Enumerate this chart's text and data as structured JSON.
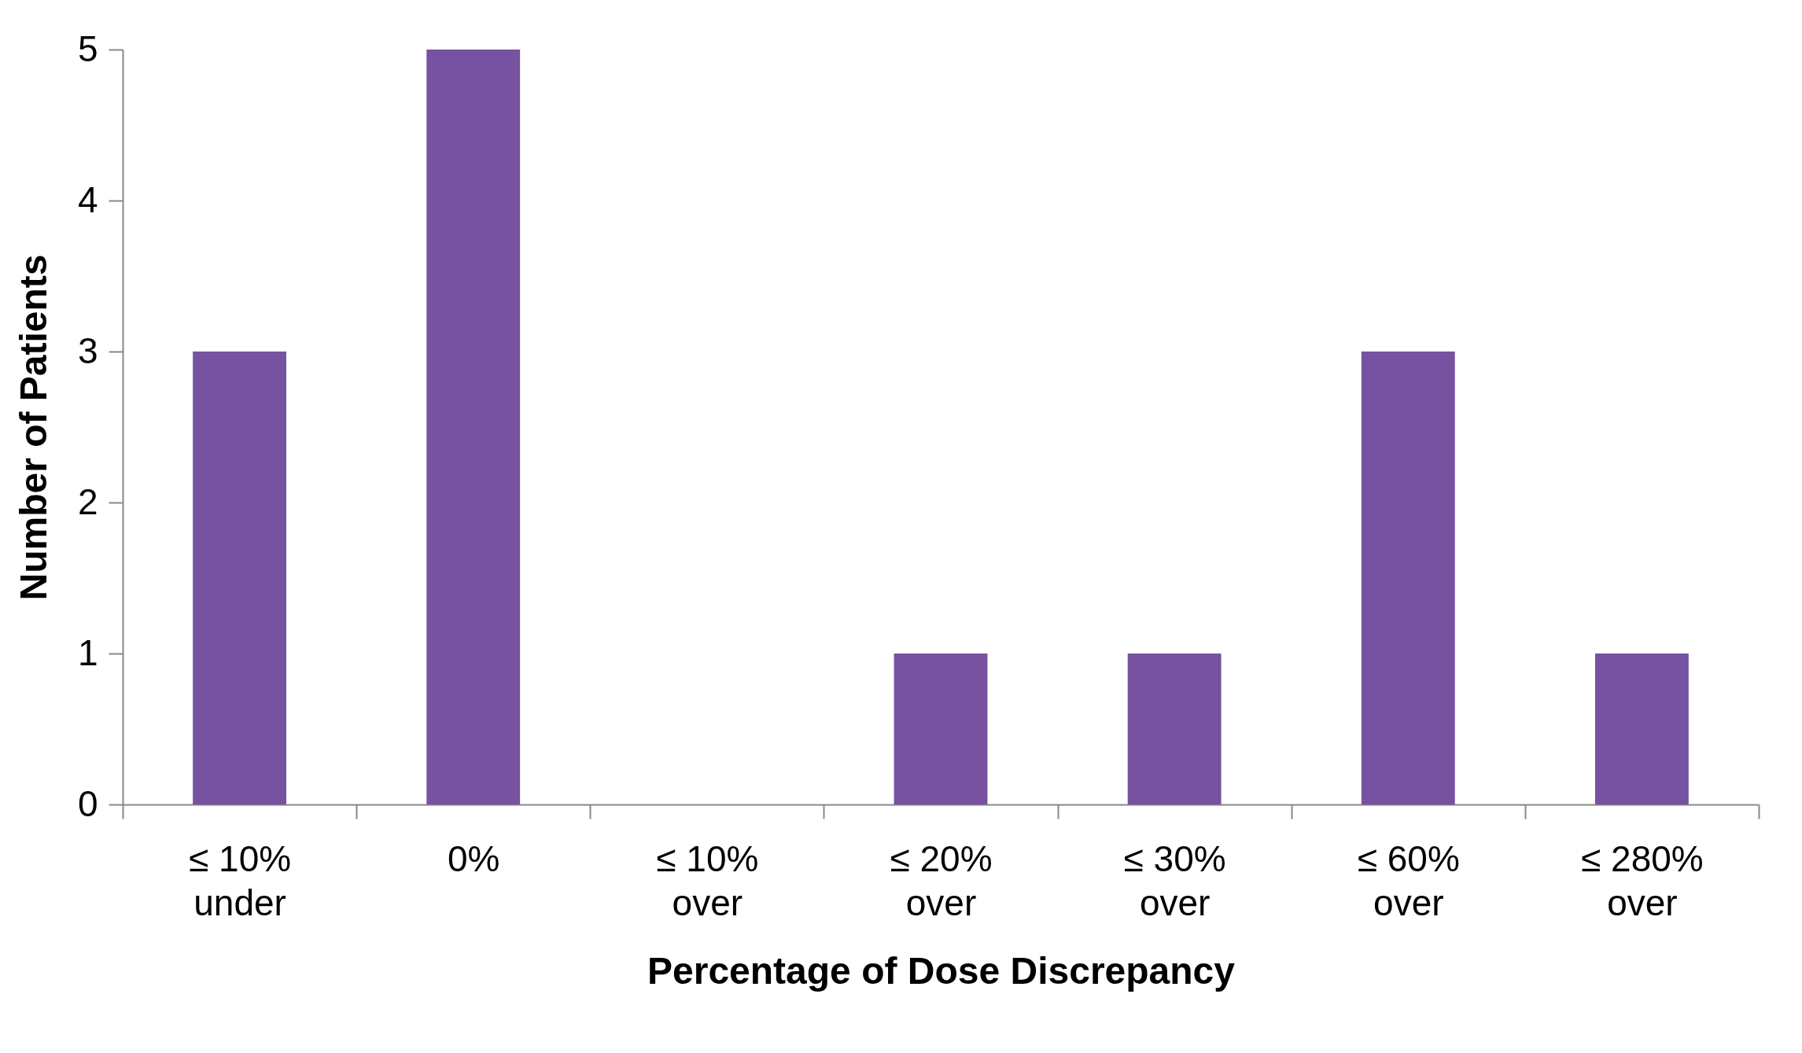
{
  "chart_data": {
    "type": "bar",
    "xlabel": "Percentage of Dose Discrepancy",
    "ylabel": "Number of Patients",
    "categories": [
      "≤ 10% under",
      "0%",
      "≤ 10% over",
      "≤ 20% over",
      "≤ 30% over",
      "≤ 60% over",
      "≤ 280% over"
    ],
    "values": [
      3,
      5,
      0,
      1,
      1,
      3,
      1
    ],
    "color": "#7652a0",
    "ylim": [
      0,
      5
    ],
    "yticks": [
      0,
      1,
      2,
      3,
      4,
      5
    ],
    "grid": false
  }
}
